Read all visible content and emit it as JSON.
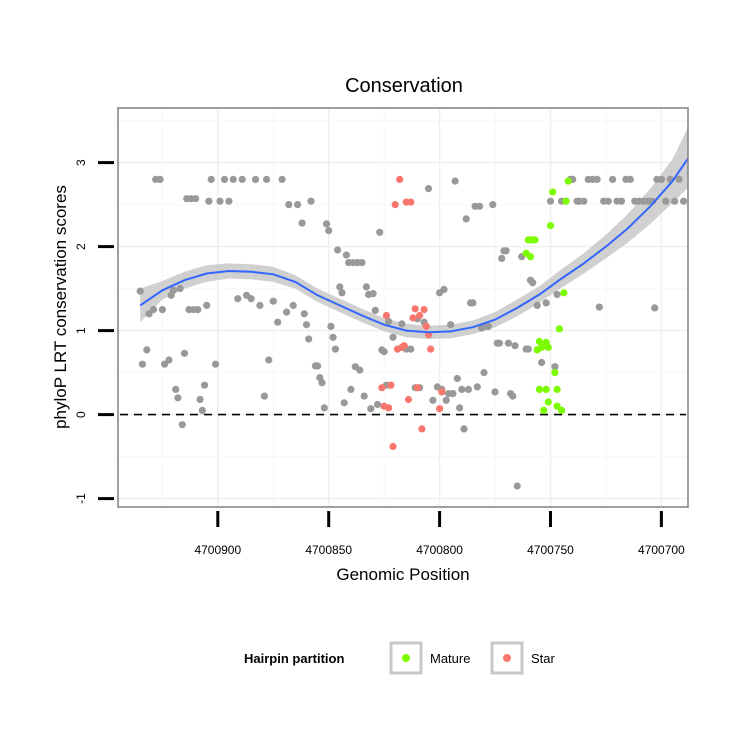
{
  "chart_data": {
    "type": "scatter",
    "title": "Conservation",
    "xlabel": "Genomic Position",
    "ylabel": "phyloP LRT conservation scores",
    "xlim": [
      4700945,
      4700688
    ],
    "ylim": [
      -1.1,
      3.65
    ],
    "x_reversed": true,
    "xticks": [
      4700900,
      4700850,
      4700800,
      4700750,
      4700700
    ],
    "xtick_labels": [
      "4700900",
      "4700850",
      "4700800",
      "4700750",
      "4700700"
    ],
    "yticks": [
      -1,
      0,
      1,
      2,
      3
    ],
    "ytick_labels": [
      "-1",
      "0",
      "1",
      "2",
      "3"
    ],
    "reference_line_y": 0,
    "legend": {
      "title": "Hairpin partition",
      "position": "bottom",
      "entries": [
        {
          "name": "Mature",
          "color": "#7CFC00"
        },
        {
          "name": "Star",
          "color": "#F8766D"
        }
      ]
    },
    "colors": {
      "other": "#999999",
      "smooth": "#3366FF",
      "ribbon": "#C8C8C8",
      "panel_border": "#888888"
    },
    "series": [
      {
        "name": "Other",
        "color": "#999999",
        "points": [
          [
            4700935,
            1.47
          ],
          [
            4700934,
            0.6
          ],
          [
            4700932,
            0.77
          ],
          [
            4700931,
            1.2
          ],
          [
            4700929,
            1.25
          ],
          [
            4700928,
            2.8
          ],
          [
            4700926,
            2.8
          ],
          [
            4700925,
            1.25
          ],
          [
            4700924,
            0.6
          ],
          [
            4700922,
            0.65
          ],
          [
            4700921,
            1.42
          ],
          [
            4700920,
            1.48
          ],
          [
            4700919,
            0.3
          ],
          [
            4700918,
            0.2
          ],
          [
            4700917,
            1.5
          ],
          [
            4700916,
            -0.12
          ],
          [
            4700915,
            0.73
          ],
          [
            4700914,
            2.57
          ],
          [
            4700913,
            1.25
          ],
          [
            4700912,
            2.57
          ],
          [
            4700911,
            1.25
          ],
          [
            4700910,
            2.57
          ],
          [
            4700909,
            1.25
          ],
          [
            4700908,
            0.18
          ],
          [
            4700907,
            0.05
          ],
          [
            4700906,
            0.35
          ],
          [
            4700905,
            1.3
          ],
          [
            4700904,
            2.54
          ],
          [
            4700903,
            2.8
          ],
          [
            4700901,
            0.6
          ],
          [
            4700899,
            2.54
          ],
          [
            4700897,
            2.8
          ],
          [
            4700895,
            2.54
          ],
          [
            4700893,
            2.8
          ],
          [
            4700891,
            1.38
          ],
          [
            4700889,
            2.8
          ],
          [
            4700887,
            1.42
          ],
          [
            4700885,
            1.38
          ],
          [
            4700883,
            2.8
          ],
          [
            4700881,
            1.3
          ],
          [
            4700879,
            0.22
          ],
          [
            4700878,
            2.8
          ],
          [
            4700877,
            0.65
          ],
          [
            4700875,
            1.35
          ],
          [
            4700873,
            1.1
          ],
          [
            4700871,
            2.8
          ],
          [
            4700869,
            1.22
          ],
          [
            4700868,
            2.5
          ],
          [
            4700866,
            1.3
          ],
          [
            4700864,
            2.5
          ],
          [
            4700862,
            2.28
          ],
          [
            4700861,
            1.2
          ],
          [
            4700860,
            1.07
          ],
          [
            4700859,
            0.9
          ],
          [
            4700858,
            2.54
          ],
          [
            4700856,
            0.58
          ],
          [
            4700855,
            0.58
          ],
          [
            4700854,
            0.44
          ],
          [
            4700853,
            0.38
          ],
          [
            4700852,
            0.08
          ],
          [
            4700851,
            2.27
          ],
          [
            4700850,
            2.19
          ],
          [
            4700849,
            1.05
          ],
          [
            4700848,
            0.92
          ],
          [
            4700847,
            0.78
          ],
          [
            4700846,
            1.96
          ],
          [
            4700845,
            1.52
          ],
          [
            4700844,
            1.45
          ],
          [
            4700843,
            0.14
          ],
          [
            4700842,
            1.9
          ],
          [
            4700841,
            1.81
          ],
          [
            4700840,
            0.3
          ],
          [
            4700839,
            1.81
          ],
          [
            4700838,
            0.57
          ],
          [
            4700837,
            1.81
          ],
          [
            4700836,
            0.53
          ],
          [
            4700835,
            1.81
          ],
          [
            4700834,
            0.22
          ],
          [
            4700833,
            1.52
          ],
          [
            4700832,
            1.43
          ],
          [
            4700831,
            0.07
          ],
          [
            4700830,
            1.44
          ],
          [
            4700829,
            1.24
          ],
          [
            4700828,
            0.12
          ],
          [
            4700827,
            2.17
          ],
          [
            4700826,
            0.77
          ],
          [
            4700825,
            0.75
          ],
          [
            4700824,
            0.35
          ],
          [
            4700823,
            1.11
          ],
          [
            4700822,
            0.35
          ],
          [
            4700821,
            0.92
          ],
          [
            4700817,
            1.08
          ],
          [
            4700815,
            0.78
          ],
          [
            4700813,
            0.78
          ],
          [
            4700811,
            0.32
          ],
          [
            4700810,
            1.14
          ],
          [
            4700809,
            0.32
          ],
          [
            4700807,
            1.1
          ],
          [
            4700805,
            2.69
          ],
          [
            4700803,
            0.17
          ],
          [
            4700801,
            0.33
          ],
          [
            4700800,
            1.45
          ],
          [
            4700799,
            0.3
          ],
          [
            4700798,
            1.49
          ],
          [
            4700797,
            0.17
          ],
          [
            4700796,
            0.25
          ],
          [
            4700795,
            1.07
          ],
          [
            4700794,
            0.25
          ],
          [
            4700793,
            2.78
          ],
          [
            4700792,
            0.43
          ],
          [
            4700791,
            0.08
          ],
          [
            4700790,
            0.3
          ],
          [
            4700789,
            -0.17
          ],
          [
            4700788,
            2.33
          ],
          [
            4700787,
            0.3
          ],
          [
            4700786,
            1.33
          ],
          [
            4700785,
            1.33
          ],
          [
            4700784,
            2.48
          ],
          [
            4700783,
            0.33
          ],
          [
            4700782,
            2.48
          ],
          [
            4700781,
            1.03
          ],
          [
            4700780,
            0.5
          ],
          [
            4700779,
            1.05
          ],
          [
            4700778,
            1.05
          ],
          [
            4700776,
            2.5
          ],
          [
            4700775,
            0.27
          ],
          [
            4700774,
            0.85
          ],
          [
            4700773,
            0.85
          ],
          [
            4700772,
            1.86
          ],
          [
            4700771,
            1.95
          ],
          [
            4700770,
            1.95
          ],
          [
            4700769,
            0.85
          ],
          [
            4700768,
            0.25
          ],
          [
            4700767,
            0.22
          ],
          [
            4700766,
            0.82
          ],
          [
            4700765,
            -0.85
          ],
          [
            4700763,
            1.88
          ],
          [
            4700761,
            0.78
          ],
          [
            4700760,
            0.78
          ],
          [
            4700759,
            1.6
          ],
          [
            4700758,
            1.57
          ],
          [
            4700756,
            1.3
          ],
          [
            4700754,
            0.62
          ],
          [
            4700752,
            1.33
          ],
          [
            4700750,
            2.54
          ],
          [
            4700748,
            0.57
          ],
          [
            4700747,
            1.43
          ],
          [
            4700745,
            2.54
          ],
          [
            4700743,
            2.54
          ],
          [
            4700741,
            2.8
          ],
          [
            4700740,
            2.8
          ],
          [
            4700738,
            2.54
          ],
          [
            4700737,
            2.54
          ],
          [
            4700735,
            2.54
          ],
          [
            4700733,
            2.8
          ],
          [
            4700731,
            2.8
          ],
          [
            4700729,
            2.8
          ],
          [
            4700728,
            1.28
          ],
          [
            4700726,
            2.54
          ],
          [
            4700724,
            2.54
          ],
          [
            4700722,
            2.8
          ],
          [
            4700720,
            2.54
          ],
          [
            4700718,
            2.54
          ],
          [
            4700716,
            2.8
          ],
          [
            4700714,
            2.8
          ],
          [
            4700712,
            2.54
          ],
          [
            4700710,
            2.54
          ],
          [
            4700708,
            2.54
          ],
          [
            4700706,
            2.54
          ],
          [
            4700704,
            2.54
          ],
          [
            4700703,
            1.27
          ],
          [
            4700702,
            2.8
          ],
          [
            4700700,
            2.8
          ],
          [
            4700698,
            2.54
          ],
          [
            4700696,
            2.8
          ],
          [
            4700694,
            2.54
          ],
          [
            4700692,
            2.8
          ],
          [
            4700690,
            2.54
          ]
        ]
      },
      {
        "name": "Mature",
        "color": "#7CFC00",
        "points": [
          [
            4700761,
            1.92
          ],
          [
            4700760,
            2.08
          ],
          [
            4700759,
            1.88
          ],
          [
            4700758,
            2.08
          ],
          [
            4700757,
            2.08
          ],
          [
            4700756,
            0.77
          ],
          [
            4700755,
            0.87
          ],
          [
            4700755,
            0.3
          ],
          [
            4700754,
            0.8
          ],
          [
            4700753,
            0.05
          ],
          [
            4700752,
            0.86
          ],
          [
            4700752,
            0.3
          ],
          [
            4700751,
            0.8
          ],
          [
            4700751,
            0.15
          ],
          [
            4700750,
            2.25
          ],
          [
            4700749,
            2.65
          ],
          [
            4700748,
            0.5
          ],
          [
            4700747,
            0.3
          ],
          [
            4700747,
            0.1
          ],
          [
            4700746,
            1.02
          ],
          [
            4700745,
            0.05
          ],
          [
            4700744,
            1.45
          ],
          [
            4700743,
            2.54
          ],
          [
            4700742,
            2.78
          ]
        ]
      },
      {
        "name": "Star",
        "color": "#F8766D",
        "points": [
          [
            4700826,
            0.32
          ],
          [
            4700825,
            0.1
          ],
          [
            4700824,
            1.18
          ],
          [
            4700823,
            0.08
          ],
          [
            4700822,
            0.35
          ],
          [
            4700821,
            -0.38
          ],
          [
            4700820,
            2.5
          ],
          [
            4700819,
            0.78
          ],
          [
            4700818,
            2.8
          ],
          [
            4700817,
            0.8
          ],
          [
            4700816,
            0.82
          ],
          [
            4700815,
            2.53
          ],
          [
            4700814,
            0.18
          ],
          [
            4700813,
            2.53
          ],
          [
            4700812,
            1.15
          ],
          [
            4700811,
            1.26
          ],
          [
            4700810,
            0.32
          ],
          [
            4700809,
            1.18
          ],
          [
            4700808,
            -0.17
          ],
          [
            4700807,
            1.25
          ],
          [
            4700806,
            1.05
          ],
          [
            4700805,
            0.95
          ],
          [
            4700804,
            0.78
          ],
          [
            4700800,
            0.07
          ],
          [
            4700799,
            0.27
          ]
        ]
      }
    ],
    "smooth_line": {
      "x": [
        4700935,
        4700925,
        4700915,
        4700905,
        4700895,
        4700885,
        4700875,
        4700865,
        4700855,
        4700845,
        4700835,
        4700825,
        4700815,
        4700805,
        4700795,
        4700785,
        4700775,
        4700765,
        4700755,
        4700745,
        4700735,
        4700725,
        4700715,
        4700705,
        4700695,
        4700688
      ],
      "y": [
        1.3,
        1.48,
        1.6,
        1.68,
        1.71,
        1.7,
        1.67,
        1.58,
        1.42,
        1.3,
        1.18,
        1.07,
        1.0,
        0.98,
        0.99,
        1.04,
        1.13,
        1.27,
        1.43,
        1.62,
        1.8,
        2.0,
        2.22,
        2.48,
        2.78,
        3.05
      ],
      "lower": [
        1.1,
        1.37,
        1.5,
        1.58,
        1.62,
        1.61,
        1.58,
        1.5,
        1.34,
        1.22,
        1.1,
        0.99,
        0.92,
        0.9,
        0.91,
        0.96,
        1.04,
        1.17,
        1.33,
        1.51,
        1.68,
        1.86,
        2.05,
        2.27,
        2.52,
        2.7
      ],
      "upper": [
        1.5,
        1.59,
        1.7,
        1.78,
        1.8,
        1.79,
        1.76,
        1.66,
        1.5,
        1.38,
        1.26,
        1.15,
        1.08,
        1.06,
        1.07,
        1.12,
        1.22,
        1.37,
        1.53,
        1.73,
        1.92,
        2.14,
        2.39,
        2.69,
        3.04,
        3.42
      ]
    }
  }
}
